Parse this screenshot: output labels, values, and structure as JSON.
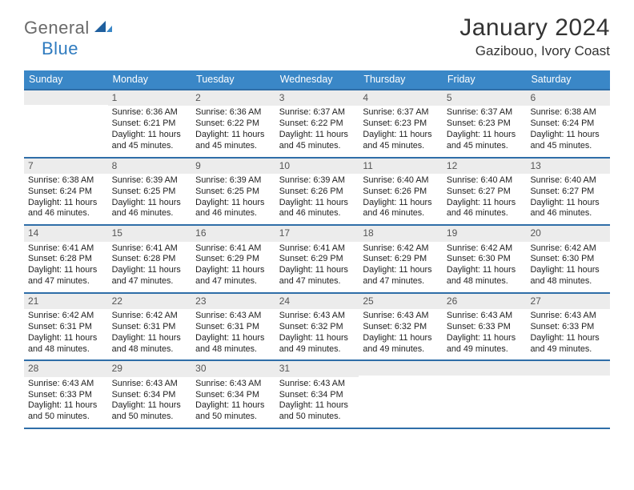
{
  "logo": {
    "general": "General",
    "blue": "Blue",
    "accent_color": "#2f7bbf"
  },
  "title": {
    "month": "January 2024",
    "location": "Gazibouo, Ivory Coast"
  },
  "colors": {
    "header_bg": "#3a87c7",
    "week_border": "#2f6ea8",
    "daynum_bg": "#ececec",
    "text": "#222222"
  },
  "dow": [
    "Sunday",
    "Monday",
    "Tuesday",
    "Wednesday",
    "Thursday",
    "Friday",
    "Saturday"
  ],
  "weeks": [
    [
      {
        "n": "",
        "sr": "",
        "ss": "",
        "dl": ""
      },
      {
        "n": "1",
        "sr": "Sunrise: 6:36 AM",
        "ss": "Sunset: 6:21 PM",
        "dl": "Daylight: 11 hours and 45 minutes."
      },
      {
        "n": "2",
        "sr": "Sunrise: 6:36 AM",
        "ss": "Sunset: 6:22 PM",
        "dl": "Daylight: 11 hours and 45 minutes."
      },
      {
        "n": "3",
        "sr": "Sunrise: 6:37 AM",
        "ss": "Sunset: 6:22 PM",
        "dl": "Daylight: 11 hours and 45 minutes."
      },
      {
        "n": "4",
        "sr": "Sunrise: 6:37 AM",
        "ss": "Sunset: 6:23 PM",
        "dl": "Daylight: 11 hours and 45 minutes."
      },
      {
        "n": "5",
        "sr": "Sunrise: 6:37 AM",
        "ss": "Sunset: 6:23 PM",
        "dl": "Daylight: 11 hours and 45 minutes."
      },
      {
        "n": "6",
        "sr": "Sunrise: 6:38 AM",
        "ss": "Sunset: 6:24 PM",
        "dl": "Daylight: 11 hours and 45 minutes."
      }
    ],
    [
      {
        "n": "7",
        "sr": "Sunrise: 6:38 AM",
        "ss": "Sunset: 6:24 PM",
        "dl": "Daylight: 11 hours and 46 minutes."
      },
      {
        "n": "8",
        "sr": "Sunrise: 6:39 AM",
        "ss": "Sunset: 6:25 PM",
        "dl": "Daylight: 11 hours and 46 minutes."
      },
      {
        "n": "9",
        "sr": "Sunrise: 6:39 AM",
        "ss": "Sunset: 6:25 PM",
        "dl": "Daylight: 11 hours and 46 minutes."
      },
      {
        "n": "10",
        "sr": "Sunrise: 6:39 AM",
        "ss": "Sunset: 6:26 PM",
        "dl": "Daylight: 11 hours and 46 minutes."
      },
      {
        "n": "11",
        "sr": "Sunrise: 6:40 AM",
        "ss": "Sunset: 6:26 PM",
        "dl": "Daylight: 11 hours and 46 minutes."
      },
      {
        "n": "12",
        "sr": "Sunrise: 6:40 AM",
        "ss": "Sunset: 6:27 PM",
        "dl": "Daylight: 11 hours and 46 minutes."
      },
      {
        "n": "13",
        "sr": "Sunrise: 6:40 AM",
        "ss": "Sunset: 6:27 PM",
        "dl": "Daylight: 11 hours and 46 minutes."
      }
    ],
    [
      {
        "n": "14",
        "sr": "Sunrise: 6:41 AM",
        "ss": "Sunset: 6:28 PM",
        "dl": "Daylight: 11 hours and 47 minutes."
      },
      {
        "n": "15",
        "sr": "Sunrise: 6:41 AM",
        "ss": "Sunset: 6:28 PM",
        "dl": "Daylight: 11 hours and 47 minutes."
      },
      {
        "n": "16",
        "sr": "Sunrise: 6:41 AM",
        "ss": "Sunset: 6:29 PM",
        "dl": "Daylight: 11 hours and 47 minutes."
      },
      {
        "n": "17",
        "sr": "Sunrise: 6:41 AM",
        "ss": "Sunset: 6:29 PM",
        "dl": "Daylight: 11 hours and 47 minutes."
      },
      {
        "n": "18",
        "sr": "Sunrise: 6:42 AM",
        "ss": "Sunset: 6:29 PM",
        "dl": "Daylight: 11 hours and 47 minutes."
      },
      {
        "n": "19",
        "sr": "Sunrise: 6:42 AM",
        "ss": "Sunset: 6:30 PM",
        "dl": "Daylight: 11 hours and 48 minutes."
      },
      {
        "n": "20",
        "sr": "Sunrise: 6:42 AM",
        "ss": "Sunset: 6:30 PM",
        "dl": "Daylight: 11 hours and 48 minutes."
      }
    ],
    [
      {
        "n": "21",
        "sr": "Sunrise: 6:42 AM",
        "ss": "Sunset: 6:31 PM",
        "dl": "Daylight: 11 hours and 48 minutes."
      },
      {
        "n": "22",
        "sr": "Sunrise: 6:42 AM",
        "ss": "Sunset: 6:31 PM",
        "dl": "Daylight: 11 hours and 48 minutes."
      },
      {
        "n": "23",
        "sr": "Sunrise: 6:43 AM",
        "ss": "Sunset: 6:31 PM",
        "dl": "Daylight: 11 hours and 48 minutes."
      },
      {
        "n": "24",
        "sr": "Sunrise: 6:43 AM",
        "ss": "Sunset: 6:32 PM",
        "dl": "Daylight: 11 hours and 49 minutes."
      },
      {
        "n": "25",
        "sr": "Sunrise: 6:43 AM",
        "ss": "Sunset: 6:32 PM",
        "dl": "Daylight: 11 hours and 49 minutes."
      },
      {
        "n": "26",
        "sr": "Sunrise: 6:43 AM",
        "ss": "Sunset: 6:33 PM",
        "dl": "Daylight: 11 hours and 49 minutes."
      },
      {
        "n": "27",
        "sr": "Sunrise: 6:43 AM",
        "ss": "Sunset: 6:33 PM",
        "dl": "Daylight: 11 hours and 49 minutes."
      }
    ],
    [
      {
        "n": "28",
        "sr": "Sunrise: 6:43 AM",
        "ss": "Sunset: 6:33 PM",
        "dl": "Daylight: 11 hours and 50 minutes."
      },
      {
        "n": "29",
        "sr": "Sunrise: 6:43 AM",
        "ss": "Sunset: 6:34 PM",
        "dl": "Daylight: 11 hours and 50 minutes."
      },
      {
        "n": "30",
        "sr": "Sunrise: 6:43 AM",
        "ss": "Sunset: 6:34 PM",
        "dl": "Daylight: 11 hours and 50 minutes."
      },
      {
        "n": "31",
        "sr": "Sunrise: 6:43 AM",
        "ss": "Sunset: 6:34 PM",
        "dl": "Daylight: 11 hours and 50 minutes."
      },
      {
        "n": "",
        "sr": "",
        "ss": "",
        "dl": ""
      },
      {
        "n": "",
        "sr": "",
        "ss": "",
        "dl": ""
      },
      {
        "n": "",
        "sr": "",
        "ss": "",
        "dl": ""
      }
    ]
  ]
}
